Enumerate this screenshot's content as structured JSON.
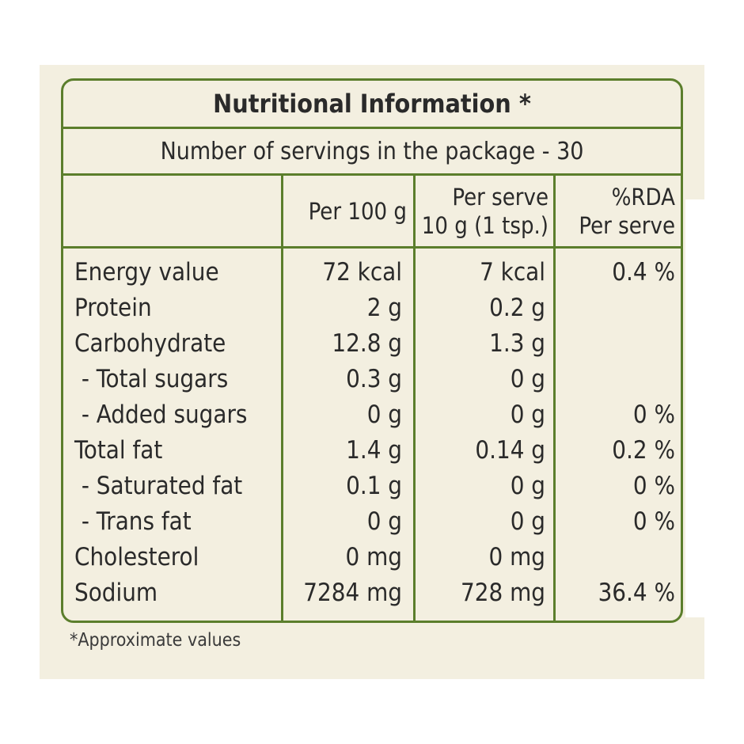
{
  "title": "Nutritional Information *",
  "servings": "Number of servings in the package - 30",
  "headers": {
    "per100": "Per 100 g",
    "perServe1": "Per serve",
    "perServe2": "10 g (1 tsp.)",
    "rda1": "%RDA",
    "rda2": "Per serve"
  },
  "rows": [
    {
      "name": "Energy value",
      "per100": "72 kcal",
      "perServe": "7 kcal",
      "rda": "0.4 %"
    },
    {
      "name": "Protein",
      "per100": "2 g",
      "perServe": "0.2 g",
      "rda": ""
    },
    {
      "name": "Carbohydrate",
      "per100": "12.8 g",
      "perServe": "1.3 g",
      "rda": ""
    },
    {
      "name": " - Total sugars",
      "per100": "0.3 g",
      "perServe": "0 g",
      "rda": ""
    },
    {
      "name": " - Added sugars",
      "per100": "0 g",
      "perServe": "0 g",
      "rda": "0 %"
    },
    {
      "name": "Total fat",
      "per100": "1.4 g",
      "perServe": "0.14 g",
      "rda": "0.2 %"
    },
    {
      "name": " - Saturated fat",
      "per100": "0.1 g",
      "perServe": "0 g",
      "rda": "0 %"
    },
    {
      "name": " - Trans fat",
      "per100": "0 g",
      "perServe": "0 g",
      "rda": "0 %"
    },
    {
      "name": "Cholesterol",
      "per100": "0 mg",
      "perServe": "0 mg",
      "rda": ""
    },
    {
      "name": "Sodium",
      "per100": "7284 mg",
      "perServe": "728 mg",
      "rda": "36.4 %"
    }
  ],
  "footnote": "*Approximate values",
  "colors": {
    "border": "#5b7e2c",
    "background": "#f3efe0",
    "text": "#2a2a2a"
  }
}
